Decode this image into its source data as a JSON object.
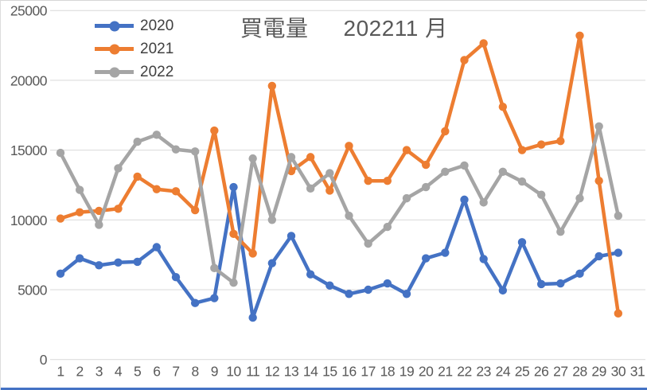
{
  "page": {
    "background": "#FFFFFF",
    "top_border_color": "#D6D6D6",
    "left_border_color": "#DCDCDC",
    "bottom_bar_color": "#4472C4"
  },
  "chart_data": {
    "type": "line",
    "title": "買電量",
    "title2": "202211 月",
    "legend_position": "top-left-vertical",
    "grid": "horizontal-only",
    "axis_text_color": "#595959",
    "gridline_color": "#D9D9D9",
    "ylim": [
      0,
      25000
    ],
    "y_ticks": [
      "0",
      "5000",
      "10000",
      "15000",
      "20000",
      "25000"
    ],
    "x_labels": [
      "1",
      "2",
      "3",
      "4",
      "5",
      "6",
      "7",
      "8",
      "9",
      "10",
      "11",
      "12",
      "13",
      "14",
      "15",
      "16",
      "17",
      "18",
      "19",
      "20",
      "21",
      "22",
      "23",
      "24",
      "25",
      "26",
      "27",
      "28",
      "29",
      "30",
      "31"
    ],
    "series": [
      {
        "name": "2020",
        "color": "#4472C4",
        "values": [
          6150,
          7250,
          6750,
          6950,
          7000,
          8050,
          5900,
          4050,
          4400,
          12350,
          3000,
          6900,
          8850,
          6100,
          5300,
          4700,
          5000,
          5450,
          4700,
          7250,
          7650,
          11450,
          7200,
          4950,
          8400,
          5400,
          5450,
          6150,
          7400,
          7650
        ]
      },
      {
        "name": "2021",
        "color": "#ED7D31",
        "values": [
          10100,
          10550,
          10650,
          10800,
          13100,
          12200,
          12050,
          10700,
          16400,
          9000,
          7600,
          19600,
          13500,
          14500,
          12100,
          15300,
          12800,
          12800,
          15000,
          13950,
          16350,
          21450,
          22650,
          18100,
          15000,
          15400,
          15650,
          23200,
          12800,
          3300
        ]
      },
      {
        "name": "2022",
        "color": "#A5A5A5",
        "values": [
          14800,
          12150,
          9650,
          13700,
          15600,
          16100,
          15050,
          14900,
          6550,
          5500,
          14400,
          10000,
          14500,
          12250,
          13350,
          10300,
          8300,
          9500,
          11550,
          12350,
          13450,
          13900,
          11250,
          13450,
          12750,
          11800,
          9150,
          11550,
          16700,
          10300
        ]
      }
    ]
  }
}
